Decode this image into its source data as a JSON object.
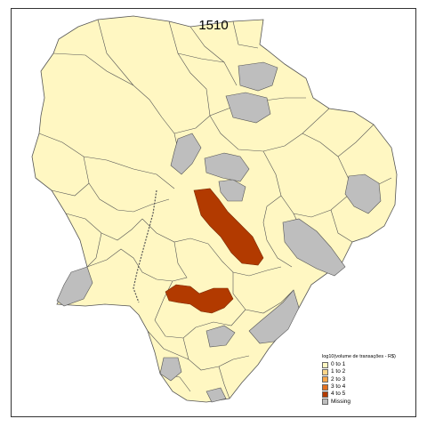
{
  "map": {
    "title": "1510",
    "colors": {
      "base": "#FFF7C2",
      "missing": "#BEBEBE",
      "high": "#B23A00",
      "border": "#555555"
    },
    "legend": {
      "title": "log10(volume de transações - R$)",
      "items": [
        {
          "label": "0 to 1",
          "color": "#FFF7C2"
        },
        {
          "label": "1 to 2",
          "color": "#FCD58A"
        },
        {
          "label": "2 to 3",
          "color": "#F8A64B"
        },
        {
          "label": "3 to 4",
          "color": "#E3701F"
        },
        {
          "label": "4 to 5",
          "color": "#B23A00"
        },
        {
          "label": "Missing",
          "color": "#BEBEBE"
        }
      ]
    }
  }
}
